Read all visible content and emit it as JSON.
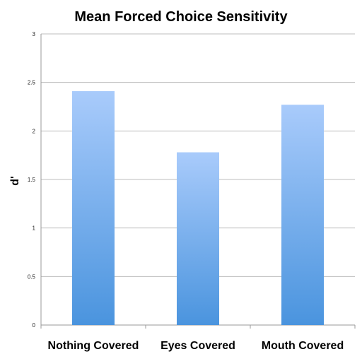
{
  "chart_data": {
    "type": "bar",
    "title": "Mean Forced Choice Sensitivity",
    "ylabel": "d'",
    "xlabel": "",
    "categories": [
      "Nothing Covered",
      "Eyes Covered",
      "Mouth Covered"
    ],
    "values": [
      2.41,
      1.78,
      2.27
    ],
    "ylim": [
      0,
      3
    ],
    "yticks": [
      "0",
      "0.5",
      "1",
      "1.5",
      "2",
      "2.5",
      "3"
    ],
    "grid": true,
    "legend": "none",
    "colors": {
      "bar_top": "#a9cbfb",
      "bar_bottom": "#4a94de"
    }
  }
}
